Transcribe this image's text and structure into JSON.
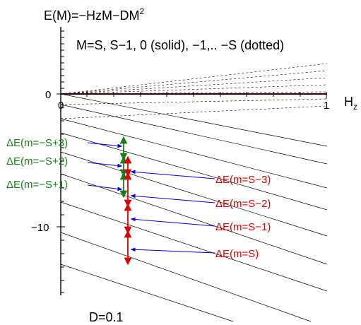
{
  "title_prefix": "E(M)=−HzM−DM",
  "title_sup": "2",
  "subtitle": "M=S, S−1, 0 (solid), −1,.. −S (dotted)",
  "x_axis": {
    "label_main": "H",
    "label_sub": "z",
    "tick_0": "0",
    "tick_1": "1"
  },
  "y_axis": {
    "tick_0": "0",
    "tick_minus10": "−10"
  },
  "footer": "D=0.1",
  "colors": {
    "green": "#1a7f1a",
    "red": "#e00000",
    "blue": "#0000dd",
    "axis": "#000000"
  },
  "annotations_green": [
    {
      "label": "ΔE(m=−S+3)"
    },
    {
      "label": "ΔE(m=−S+2)"
    },
    {
      "label": "ΔE(m=−S+1)"
    }
  ],
  "annotations_red": [
    {
      "label": "ΔE(m=S−3)"
    },
    {
      "label": "ΔE(m=S−2)"
    },
    {
      "label": "ΔE(m=S−1)"
    },
    {
      "label": "ΔE(m=S)"
    }
  ]
}
